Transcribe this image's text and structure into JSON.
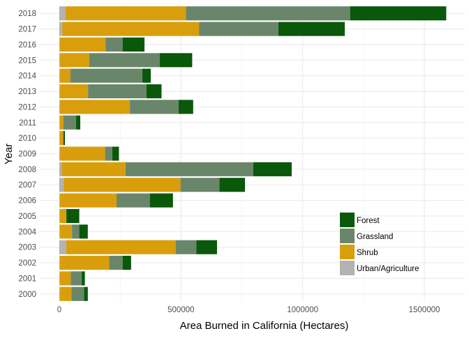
{
  "chart_data": {
    "type": "bar",
    "orientation": "horizontal",
    "stacked": true,
    "title": "",
    "xlabel": "Area Burned in California (Hectares)",
    "ylabel": "Year",
    "xlim": [
      -30000,
      1660000
    ],
    "xticks": [
      0,
      500000,
      1000000,
      1500000
    ],
    "xtick_labels": [
      "0",
      "500000",
      "1000000",
      "1500000"
    ],
    "grid": true,
    "legend_position": "bottom-right",
    "categories": [
      "2000",
      "2001",
      "2002",
      "2003",
      "2004",
      "2005",
      "2006",
      "2007",
      "2008",
      "2009",
      "2010",
      "2011",
      "2012",
      "2013",
      "2014",
      "2015",
      "2016",
      "2017",
      "2018"
    ],
    "stack_order": [
      "Urban/Agriculture",
      "Shrub",
      "Grassland",
      "Forest"
    ],
    "legend_order": [
      "Forest",
      "Grassland",
      "Shrub",
      "Urban/Agriculture"
    ],
    "series": [
      {
        "name": "Urban/Agriculture",
        "color": "#b3b3b3",
        "values": [
          3000,
          2000,
          2000,
          28000,
          2000,
          2000,
          2000,
          18000,
          10000,
          3000,
          2000,
          2000,
          3000,
          3000,
          3000,
          3000,
          2000,
          12000,
          25000
        ]
      },
      {
        "name": "Shrub",
        "color": "#d99e0b",
        "values": [
          47000,
          45000,
          203000,
          450000,
          50000,
          27000,
          233000,
          480000,
          262000,
          185000,
          15000,
          15000,
          287000,
          115000,
          43000,
          120000,
          188000,
          562000,
          495000
        ]
      },
      {
        "name": "Grassland",
        "color": "#6a866a",
        "values": [
          52000,
          45000,
          55000,
          85000,
          30000,
          0,
          137000,
          160000,
          525000,
          30000,
          0,
          52000,
          200000,
          240000,
          295000,
          290000,
          70000,
          326000,
          675000
        ]
      },
      {
        "name": "Forest",
        "color": "#0a580a",
        "values": [
          15000,
          13000,
          35000,
          85000,
          35000,
          53000,
          95000,
          105000,
          158000,
          27000,
          6000,
          17000,
          60000,
          62000,
          35000,
          133000,
          90000,
          273000,
          395000
        ]
      }
    ]
  }
}
